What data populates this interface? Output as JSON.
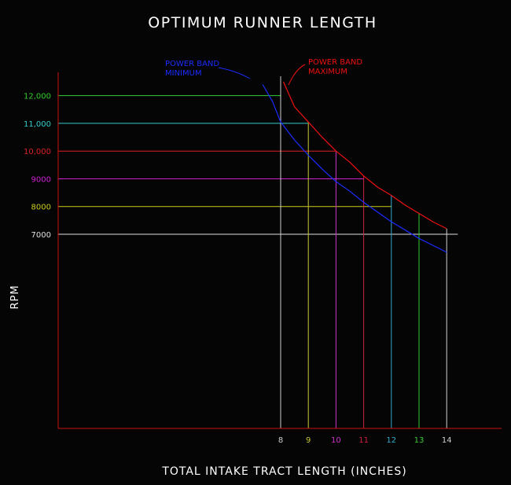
{
  "chart_data": {
    "type": "line",
    "title": "OPTIMUM RUNNER LENGTH",
    "xlabel": "TOTAL INTAKE TRACT LENGTH (INCHES)",
    "ylabel": "RPM",
    "x_ticks": [
      {
        "value": 8,
        "label": "8",
        "color": "#d0d0d0"
      },
      {
        "value": 9,
        "label": "9",
        "color": "#c8c830"
      },
      {
        "value": 10,
        "label": "10",
        "color": "#cc33cc"
      },
      {
        "value": 11,
        "label": "11",
        "color": "#cc2040"
      },
      {
        "value": 12,
        "label": "12",
        "color": "#33aacc"
      },
      {
        "value": 13,
        "label": "13",
        "color": "#33cc33"
      },
      {
        "value": 14,
        "label": "14",
        "color": "#d0d0d0"
      }
    ],
    "y_ticks": [
      {
        "value": 12000,
        "label": "12,000",
        "color": "#33cc33",
        "line_to_x": 8
      },
      {
        "value": 11000,
        "label": "11,000",
        "color": "#33cccc",
        "line_to_x": 9
      },
      {
        "value": 10000,
        "label": "10,000",
        "color": "#dd2020",
        "line_to_x": 10
      },
      {
        "value": 9000,
        "label": "9000",
        "color": "#cc22cc",
        "line_to_x": 11
      },
      {
        "value": 8000,
        "label": "8000",
        "color": "#cccc20",
        "line_to_x": 12
      },
      {
        "value": 7000,
        "label": "7000",
        "color": "#e0e0e0",
        "line_to_x": 14.4
      }
    ],
    "series": [
      {
        "name": "POWER BAND MAXIMUM",
        "color": "#ee1111",
        "points": [
          [
            8.1,
            12500
          ],
          [
            8.5,
            11600
          ],
          [
            9,
            11050
          ],
          [
            9.5,
            10500
          ],
          [
            10,
            10000
          ],
          [
            10.5,
            9600
          ],
          [
            11,
            9100
          ],
          [
            11.5,
            8700
          ],
          [
            12,
            8400
          ],
          [
            12.5,
            8050
          ],
          [
            13,
            7750
          ],
          [
            13.5,
            7450
          ],
          [
            14,
            7200
          ]
        ]
      },
      {
        "name": "POWER BAND MINIMUM",
        "color": "#1a2cff",
        "points": [
          [
            7.35,
            12400
          ],
          [
            7.7,
            11800
          ],
          [
            8,
            11050
          ],
          [
            8.5,
            10400
          ],
          [
            9,
            9850
          ],
          [
            9.5,
            9350
          ],
          [
            10,
            8900
          ],
          [
            10.5,
            8550
          ],
          [
            11,
            8150
          ],
          [
            11.5,
            7800
          ],
          [
            12,
            7450
          ],
          [
            12.5,
            7150
          ],
          [
            13,
            6850
          ],
          [
            13.5,
            6600
          ],
          [
            14,
            6350
          ]
        ]
      }
    ],
    "annotations": [
      {
        "line1": "POWER BAND",
        "line2": "MINIMUM",
        "color": "#1a2cff"
      },
      {
        "line1": "POWER BAND",
        "line2": "MAXIMUM",
        "color": "#ee1111"
      }
    ],
    "axis_color": "#cc1111"
  }
}
